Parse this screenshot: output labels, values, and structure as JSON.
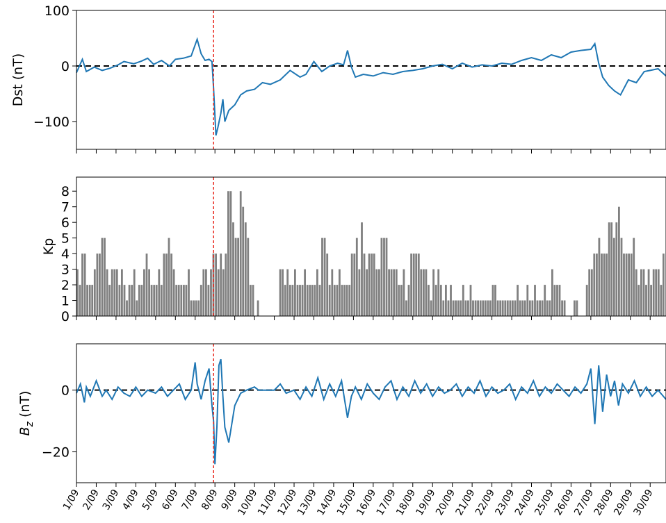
{
  "chart_data": [
    {
      "type": "line",
      "ylabel": "Dst (nT)",
      "ylim": [
        -150,
        100
      ],
      "yticks": [
        {
          "value": 100,
          "label": "100"
        },
        {
          "value": 0,
          "label": "0"
        },
        {
          "value": -100,
          "label": "−100"
        }
      ],
      "xlim": [
        1,
        30.8
      ],
      "reference_line": {
        "y": 0,
        "style": "dashed",
        "color": "#000000"
      },
      "event_line": {
        "x": 7.93,
        "style": "dashed",
        "color": "#e8281e"
      },
      "series": [
        {
          "color": "#1f77b4",
          "x": [
            1.0,
            1.3,
            1.5,
            1.9,
            2.3,
            2.7,
            3.1,
            3.4,
            3.9,
            4.3,
            4.6,
            4.9,
            5.3,
            5.7,
            6.0,
            6.4,
            6.8,
            7.1,
            7.3,
            7.5,
            7.7,
            7.85,
            7.93,
            8.05,
            8.15,
            8.3,
            8.4,
            8.5,
            8.7,
            9.0,
            9.3,
            9.6,
            10.0,
            10.4,
            10.8,
            11.3,
            11.8,
            12.3,
            12.6,
            13.0,
            13.4,
            13.8,
            14.2,
            14.5,
            14.7,
            14.9,
            15.1,
            15.5,
            16.0,
            16.5,
            17.0,
            17.5,
            18.0,
            18.5,
            19.0,
            19.5,
            20.0,
            20.5,
            21.0,
            21.5,
            22.0,
            22.5,
            23.0,
            23.5,
            24.0,
            24.5,
            25.0,
            25.5,
            26.0,
            26.5,
            27.0,
            27.2,
            27.4,
            27.6,
            27.9,
            28.2,
            28.5,
            28.9,
            29.3,
            29.7,
            30.0,
            30.4,
            30.8
          ],
          "y": [
            -12,
            12,
            -10,
            -2,
            -8,
            -4,
            2,
            8,
            4,
            9,
            14,
            3,
            10,
            0,
            12,
            14,
            18,
            48,
            22,
            10,
            12,
            8,
            -40,
            -125,
            -110,
            -85,
            -60,
            -100,
            -80,
            -70,
            -52,
            -45,
            -42,
            -30,
            -33,
            -25,
            -8,
            -20,
            -15,
            8,
            -10,
            0,
            5,
            2,
            28,
            -2,
            -20,
            -15,
            -18,
            -12,
            -15,
            -10,
            -8,
            -5,
            0,
            3,
            -5,
            5,
            -2,
            2,
            0,
            5,
            3,
            10,
            15,
            10,
            20,
            15,
            25,
            28,
            30,
            40,
            5,
            -20,
            -35,
            -45,
            -52,
            -25,
            -30,
            -10,
            -8,
            -5,
            -18
          ]
        }
      ]
    },
    {
      "type": "bar",
      "ylabel": "Kp",
      "ylim": [
        0,
        8.9
      ],
      "yticks": [
        {
          "value": 0,
          "label": "0"
        },
        {
          "value": 1,
          "label": "1"
        },
        {
          "value": 2,
          "label": "2"
        },
        {
          "value": 3,
          "label": "3"
        },
        {
          "value": 4,
          "label": "4"
        },
        {
          "value": 5,
          "label": "5"
        },
        {
          "value": 6,
          "label": "6"
        },
        {
          "value": 7,
          "label": "7"
        },
        {
          "value": 8,
          "label": "8"
        }
      ],
      "xlim": [
        1,
        30.8
      ],
      "bar_width_days": 0.1,
      "bar_color": "#808080",
      "bar_step_days": 0.125,
      "event_line": {
        "x": 7.93,
        "style": "dashed",
        "color": "#e8281e"
      },
      "values": [
        3,
        2,
        4,
        4,
        2,
        2,
        2,
        3,
        4,
        4,
        5,
        5,
        3,
        2,
        3,
        3,
        3,
        2,
        3,
        2,
        1,
        2,
        2,
        3,
        1,
        2,
        2,
        3,
        4,
        3,
        2,
        2,
        2,
        3,
        2,
        4,
        4,
        5,
        4,
        3,
        2,
        2,
        2,
        2,
        2,
        3,
        1,
        1,
        1,
        1,
        2,
        3,
        3,
        2,
        3,
        4,
        4,
        3,
        4,
        3,
        4,
        8,
        8,
        6,
        5,
        5,
        8,
        7,
        6,
        5,
        2,
        2,
        0,
        1,
        0,
        0,
        0,
        0,
        0,
        0,
        0,
        0,
        3,
        3,
        2,
        3,
        2,
        2,
        3,
        2,
        2,
        2,
        3,
        2,
        2,
        2,
        2,
        3,
        2,
        5,
        5,
        4,
        2,
        3,
        2,
        2,
        3,
        2,
        2,
        2,
        2,
        4,
        4,
        5,
        3,
        6,
        4,
        3,
        4,
        4,
        4,
        3,
        3,
        5,
        5,
        5,
        3,
        3,
        3,
        3,
        2,
        2,
        3,
        1,
        2,
        4,
        4,
        4,
        4,
        3,
        3,
        3,
        2,
        1,
        3,
        2,
        3,
        2,
        1,
        2,
        1,
        2,
        1,
        1,
        1,
        1,
        2,
        1,
        1,
        2,
        1,
        1,
        1,
        1,
        1,
        1,
        1,
        1,
        2,
        2,
        1,
        1,
        1,
        1,
        1,
        1,
        1,
        1,
        2,
        1,
        1,
        1,
        2,
        1,
        1,
        2,
        1,
        1,
        1,
        2,
        1,
        1,
        3,
        2,
        2,
        2,
        1,
        1,
        0,
        0,
        0,
        1,
        1,
        0,
        0,
        0,
        2,
        3,
        3,
        4,
        4,
        5,
        4,
        4,
        4,
        6,
        6,
        5,
        6,
        7,
        5,
        4,
        4,
        4,
        4,
        5,
        3,
        2,
        3,
        3,
        2,
        3,
        2,
        3,
        3,
        3,
        2,
        4
      ]
    },
    {
      "type": "line",
      "ylabel": "B_z (nT)",
      "ylim": [
        -30,
        15
      ],
      "yticks": [
        {
          "value": 0,
          "label": "0"
        },
        {
          "value": -20,
          "label": "−20"
        }
      ],
      "xlim": [
        1,
        30.8
      ],
      "reference_line": {
        "y": 0,
        "style": "dashed",
        "color": "#000000"
      },
      "event_line": {
        "x": 7.93,
        "style": "dashed",
        "color": "#e8281e"
      },
      "series": [
        {
          "color": "#1f77b4",
          "x": [
            1.0,
            1.2,
            1.4,
            1.5,
            1.7,
            2.0,
            2.3,
            2.5,
            2.8,
            3.1,
            3.4,
            3.7,
            4.0,
            4.3,
            4.6,
            5.0,
            5.3,
            5.6,
            5.9,
            6.2,
            6.5,
            6.8,
            7.0,
            7.1,
            7.3,
            7.5,
            7.7,
            7.85,
            7.93,
            8.0,
            8.1,
            8.2,
            8.3,
            8.4,
            8.5,
            8.7,
            9.0,
            9.3,
            9.6,
            10.0,
            10.2,
            10.4,
            10.6,
            11.0,
            11.3,
            11.6,
            12.0,
            12.3,
            12.6,
            12.9,
            13.2,
            13.5,
            13.8,
            14.1,
            14.4,
            14.7,
            14.9,
            15.1,
            15.4,
            15.7,
            16.0,
            16.3,
            16.6,
            16.9,
            17.2,
            17.5,
            17.8,
            18.1,
            18.4,
            18.7,
            19.0,
            19.3,
            19.6,
            19.9,
            20.2,
            20.5,
            20.8,
            21.1,
            21.4,
            21.7,
            22.0,
            22.3,
            22.6,
            22.9,
            23.2,
            23.5,
            23.8,
            24.1,
            24.4,
            24.7,
            25.0,
            25.3,
            25.6,
            25.9,
            26.2,
            26.5,
            26.8,
            27.0,
            27.2,
            27.4,
            27.6,
            27.8,
            28.0,
            28.2,
            28.4,
            28.6,
            28.9,
            29.2,
            29.5,
            29.8,
            30.1,
            30.4,
            30.8
          ],
          "y": [
            -1,
            2,
            -4,
            1,
            -2,
            3,
            -2,
            0,
            -3,
            1,
            -1,
            -2,
            1,
            -2,
            0,
            -1,
            1,
            -2,
            0,
            2,
            -3,
            0,
            9,
            2,
            -3,
            3,
            7,
            -5,
            -10,
            -24,
            -12,
            8,
            10,
            -2,
            -12,
            -17,
            -5,
            -1,
            0,
            1,
            0,
            0,
            0,
            0,
            2,
            -1,
            0,
            -3,
            1,
            -2,
            4,
            -3,
            2,
            -2,
            3,
            -9,
            -2,
            1,
            -3,
            2,
            -1,
            -3,
            1,
            3,
            -3,
            1,
            -2,
            3,
            -1,
            2,
            -2,
            1,
            -1,
            0,
            2,
            -2,
            1,
            -1,
            3,
            -2,
            1,
            -1,
            0,
            2,
            -3,
            1,
            -1,
            3,
            -2,
            1,
            -1,
            2,
            0,
            -2,
            1,
            -1,
            2,
            7,
            -11,
            8,
            -7,
            5,
            -2,
            3,
            -5,
            2,
            -1,
            3,
            -2,
            1,
            -2,
            0,
            -3
          ]
        }
      ]
    }
  ],
  "x_axis": {
    "date_labels": [
      "1/09",
      "2/09",
      "3/09",
      "4/09",
      "5/09",
      "6/09",
      "7/09",
      "8/09",
      "9/09",
      "10/09",
      "11/09",
      "12/09",
      "13/09",
      "14/09",
      "15/09",
      "16/09",
      "17/09",
      "18/09",
      "19/09",
      "20/09",
      "21/09",
      "22/09",
      "23/09",
      "24/09",
      "25/09",
      "26/09",
      "27/09",
      "28/09",
      "29/09",
      "30/09"
    ]
  }
}
